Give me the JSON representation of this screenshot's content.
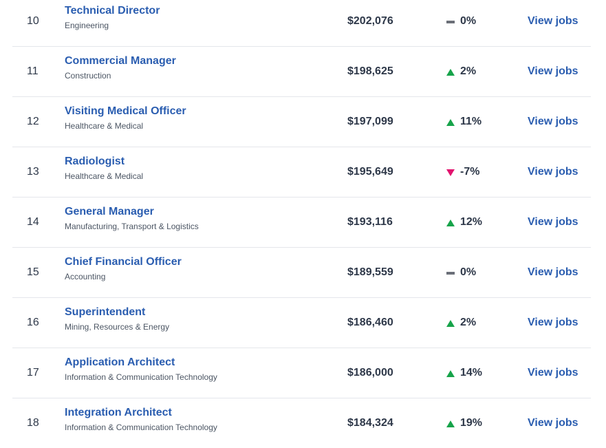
{
  "colors": {
    "link": "#2a5db0",
    "up": "#17a34a",
    "down": "#e2136e",
    "flat": "#6b6f78"
  },
  "rows": [
    {
      "rank": "10",
      "title": "Technical Director",
      "category": "Engineering",
      "salary": "$202,076",
      "trend": "flat",
      "change": "0%",
      "action": "View jobs"
    },
    {
      "rank": "11",
      "title": "Commercial Manager",
      "category": "Construction",
      "salary": "$198,625",
      "trend": "up",
      "change": "2%",
      "action": "View jobs"
    },
    {
      "rank": "12",
      "title": "Visiting Medical Officer",
      "category": "Healthcare & Medical",
      "salary": "$197,099",
      "trend": "up",
      "change": "11%",
      "action": "View jobs"
    },
    {
      "rank": "13",
      "title": "Radiologist",
      "category": "Healthcare & Medical",
      "salary": "$195,649",
      "trend": "down",
      "change": "-7%",
      "action": "View jobs"
    },
    {
      "rank": "14",
      "title": "General Manager",
      "category": "Manufacturing, Transport & Logistics",
      "salary": "$193,116",
      "trend": "up",
      "change": "12%",
      "action": "View jobs"
    },
    {
      "rank": "15",
      "title": "Chief Financial Officer",
      "category": "Accounting",
      "salary": "$189,559",
      "trend": "flat",
      "change": "0%",
      "action": "View jobs"
    },
    {
      "rank": "16",
      "title": "Superintendent",
      "category": "Mining, Resources & Energy",
      "salary": "$186,460",
      "trend": "up",
      "change": "2%",
      "action": "View jobs"
    },
    {
      "rank": "17",
      "title": "Application Architect",
      "category": "Information & Communication Technology",
      "salary": "$186,000",
      "trend": "up",
      "change": "14%",
      "action": "View jobs"
    },
    {
      "rank": "18",
      "title": "Integration Architect",
      "category": "Information & Communication Technology",
      "salary": "$184,324",
      "trend": "up",
      "change": "19%",
      "action": "View jobs"
    }
  ]
}
